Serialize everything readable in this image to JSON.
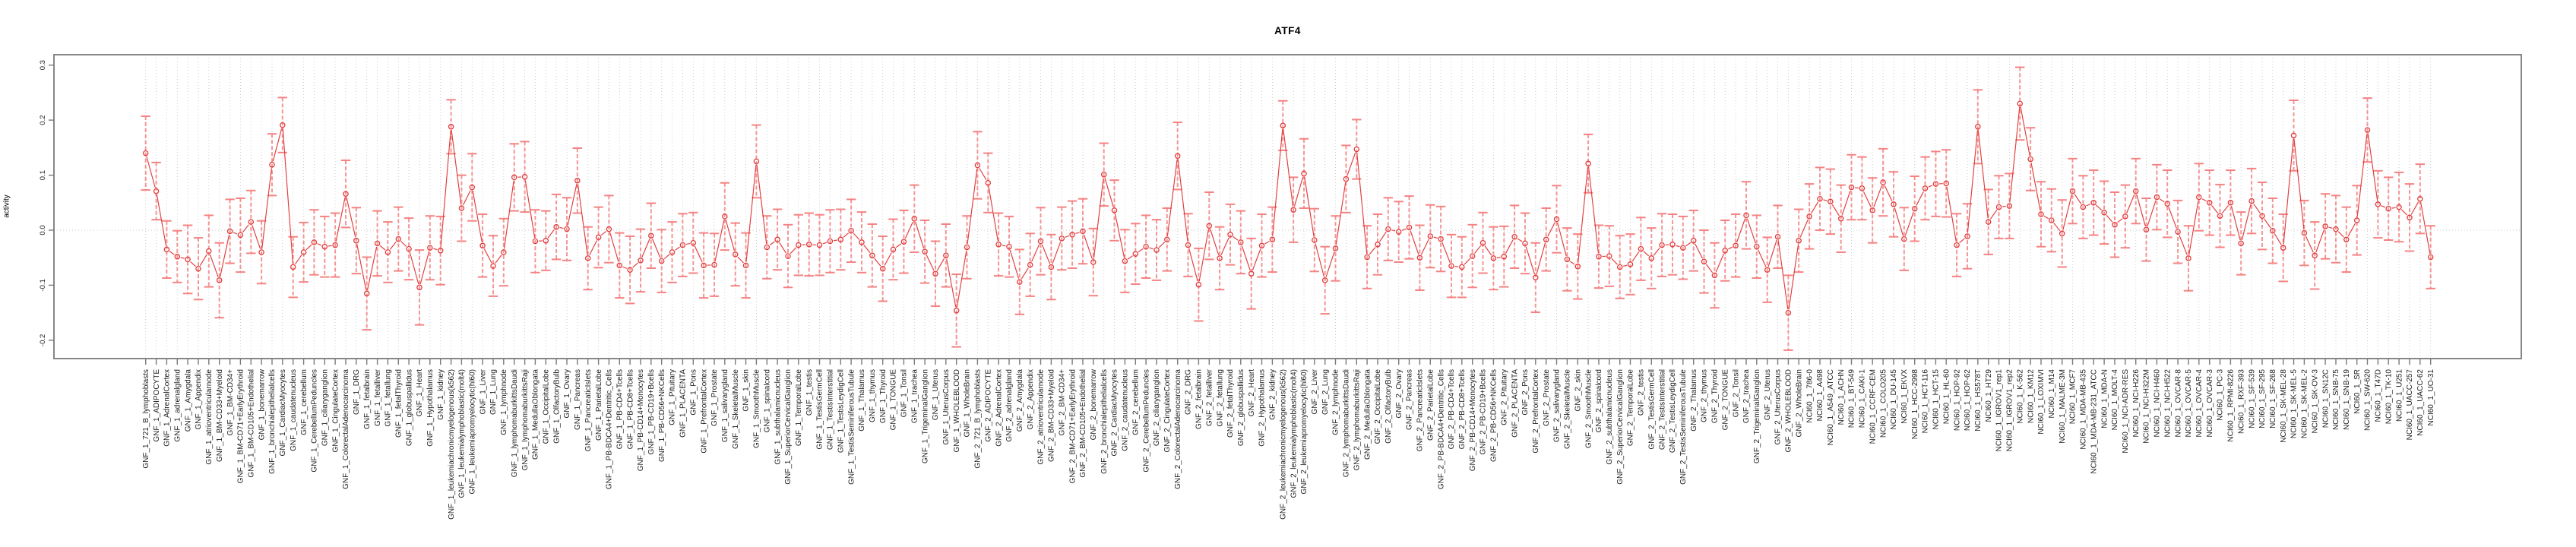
{
  "title": "ATF4",
  "chart_data": {
    "type": "line",
    "title": "ATF4",
    "ylabel": "activity",
    "xlabel": "",
    "ylim": [
      -0.23,
      0.32
    ],
    "yticks": [
      0.3,
      0.2,
      0.1,
      0.0,
      -0.1,
      -0.2
    ],
    "ytick_labels": [
      "0.3",
      "0.2",
      "0.1",
      "0.0",
      "-0.1",
      "-0.2"
    ],
    "legend_position": "none",
    "grid": {
      "vertical_dotted_per_category": true,
      "horizontal_zero_line_dotted": true
    },
    "marker": "open-circle-with-error-bars",
    "colors": {
      "point": "#e23b3b",
      "line": "#e23b3b",
      "error_bar": "#f47c7c",
      "grid": "#c9c9c9",
      "axis": "#7a7a7a",
      "text": "#1c1c1c"
    },
    "points_format": [
      "label",
      "value",
      "err"
    ],
    "points": [
      [
        "GNF_1_721_B_lymphoblasts",
        0.14,
        0.067
      ],
      [
        "GNF_1_ADIPOCYTE",
        0.071,
        0.052
      ],
      [
        "GNF_1_AdrenalCortex",
        -0.035,
        0.052
      ],
      [
        "GNF_1_adrenalgland",
        -0.048,
        0.047
      ],
      [
        "GNF_1_Amygdala",
        -0.053,
        0.062
      ],
      [
        "GNF_1_Appendix",
        -0.07,
        0.056
      ],
      [
        "GNF_1_atrioventricularnode",
        -0.038,
        0.065
      ],
      [
        "GNF_1_BM-CD33+Myeloid",
        -0.091,
        0.068
      ],
      [
        "GNF_1_BM-CD34+",
        -0.002,
        0.058
      ],
      [
        "GNF_1_BM-CD71+EarlyErythroid",
        -0.009,
        0.067
      ],
      [
        "GNF_1_BM-CD105+Endothelial",
        0.015,
        0.057
      ],
      [
        "GNF_1_bonemarrow",
        -0.04,
        0.057
      ],
      [
        "GNF_1_bronchialepithelialcells",
        0.119,
        0.056
      ],
      [
        "GNF_1_CardiacMyocytes",
        0.191,
        0.05
      ],
      [
        "GNF_1_caudatenucleus",
        -0.067,
        0.055
      ],
      [
        "GNF_1_cerebellum",
        -0.04,
        0.054
      ],
      [
        "GNF_1_CerebellumPeduncles",
        -0.022,
        0.059
      ],
      [
        "GNF_1_ciliaryganglion",
        -0.03,
        0.055
      ],
      [
        "GNF_1_CingulateCortex",
        -0.027,
        0.058
      ],
      [
        "GNF_1_ColorectalAdenocarcinoma",
        0.066,
        0.061
      ],
      [
        "GNF_1_DRG",
        -0.019,
        0.06
      ],
      [
        "GNF_1_fetalbrain",
        -0.115,
        0.066
      ],
      [
        "GNF_1_fetalliver",
        -0.024,
        0.059
      ],
      [
        "GNF_1_fetallung",
        -0.04,
        0.055
      ],
      [
        "GNF_1_fetalThyroid",
        -0.016,
        0.058
      ],
      [
        "GNF_1_globuspallidus",
        -0.034,
        0.056
      ],
      [
        "GNF_1_Heart",
        -0.104,
        0.068
      ],
      [
        "GNF_1_Hypothalamus",
        -0.032,
        0.058
      ],
      [
        "GNF_1_kidney",
        -0.037,
        0.062
      ],
      [
        "GNF_1_leukemiachronicmyelogenous(k562)",
        0.188,
        0.049
      ],
      [
        "GNF_1_leukemialymphoblastic(molt4)",
        0.04,
        0.06
      ],
      [
        "GNF_1_leukemiapromyelocytic(hl60)",
        0.078,
        0.061
      ],
      [
        "GNF_1_Liver",
        -0.028,
        0.057
      ],
      [
        "GNF_1_Lung",
        -0.065,
        0.055
      ],
      [
        "GNF_1_lymphnode",
        -0.04,
        0.061
      ],
      [
        "GNF_1_lymphomaburkittsDaudi",
        0.096,
        0.061
      ],
      [
        "GNF_1_lymphomaburkittsRaji",
        0.097,
        0.064
      ],
      [
        "GNF_1_MedullaOblongata",
        -0.02,
        0.057
      ],
      [
        "GNF_1_OccipitalLobe",
        -0.019,
        0.054
      ],
      [
        "GNF_1_OlfactoryBulb",
        0.006,
        0.059
      ],
      [
        "GNF_1_Ovary",
        0.002,
        0.057
      ],
      [
        "GNF_1_Pancreas",
        0.09,
        0.059
      ],
      [
        "GNF_1_PancreaticIslets",
        -0.051,
        0.057
      ],
      [
        "GNF_1_ParietalLobe",
        -0.013,
        0.055
      ],
      [
        "GNF_1_PB-BDCA4+Dentritic_Cells",
        0.002,
        0.061
      ],
      [
        "GNF_1_PB-CD4+Tcells",
        -0.064,
        0.059
      ],
      [
        "GNF_1_PB-CD8+Tcells",
        -0.072,
        0.061
      ],
      [
        "GNF_1_PB-CD14+Monocytes",
        -0.055,
        0.057
      ],
      [
        "GNF_1_PB-CD19+Bcells",
        -0.01,
        0.059
      ],
      [
        "GNF_1_PB-CD56+NKCells",
        -0.056,
        0.057
      ],
      [
        "GNF_1_Pituitary",
        -0.04,
        0.055
      ],
      [
        "GNF_1_PLACENTA",
        -0.027,
        0.057
      ],
      [
        "GNF_1_Pons",
        -0.023,
        0.055
      ],
      [
        "GNF_1_PrefrontalCortex",
        -0.064,
        0.059
      ],
      [
        "GNF_1_Prostate",
        -0.063,
        0.057
      ],
      [
        "GNF_1_salivarygland",
        0.025,
        0.061
      ],
      [
        "GNF_1_SkeletalMuscle",
        -0.044,
        0.057
      ],
      [
        "GNF_1_skin",
        -0.064,
        0.059
      ],
      [
        "GNF_1_SmoothMuscle",
        0.125,
        0.066
      ],
      [
        "GNF_1_spinalcord",
        -0.031,
        0.057
      ],
      [
        "GNF_1_subthalamicnucleus",
        -0.017,
        0.055
      ],
      [
        "GNF_1_SuperiorCervicalGanglion",
        -0.047,
        0.057
      ],
      [
        "GNF_1_TemporalLobe",
        -0.027,
        0.055
      ],
      [
        "GNF_1_testis",
        -0.026,
        0.057
      ],
      [
        "GNF_1_TestisGermCell",
        -0.027,
        0.055
      ],
      [
        "GNF_1_TestisInterstitial",
        -0.02,
        0.057
      ],
      [
        "GNF_1_TestisLeydigCell",
        -0.017,
        0.055
      ],
      [
        "GNF_1_TestisSeminiferousTubule",
        -0.001,
        0.057
      ],
      [
        "GNF_1_Thalamus",
        -0.022,
        0.055
      ],
      [
        "GNF_1_thymus",
        -0.046,
        0.057
      ],
      [
        "GNF_1_Thyroid",
        -0.07,
        0.059
      ],
      [
        "GNF_1_TONGUE",
        -0.035,
        0.055
      ],
      [
        "GNF_1_Tonsil",
        -0.021,
        0.057
      ],
      [
        "GNF_1_trachea",
        0.021,
        0.061
      ],
      [
        "GNF_1_TrigeminalGanglion",
        -0.039,
        0.057
      ],
      [
        "GNF_1_Uterus",
        -0.079,
        0.059
      ],
      [
        "GNF_1_UterusCorpus",
        -0.046,
        0.057
      ],
      [
        "GNF_1_WHOLEBLOOD",
        -0.146,
        0.066
      ],
      [
        "GNF_1_WholeBrain",
        -0.031,
        0.057
      ],
      [
        "GNF_2_721_B_lymphoblasts",
        0.118,
        0.061
      ],
      [
        "GNF_2_ADIPOCYTE",
        0.086,
        0.054
      ],
      [
        "GNF_2_AdrenalCortex",
        -0.026,
        0.057
      ],
      [
        "GNF_2_adrenalgland",
        -0.03,
        0.055
      ],
      [
        "GNF_2_Amygdala",
        -0.094,
        0.059
      ],
      [
        "GNF_2_Appendix",
        -0.063,
        0.057
      ],
      [
        "GNF_2_atrioventricularnode",
        -0.02,
        0.061
      ],
      [
        "GNF_2_BM-CD33+Myeloid",
        -0.067,
        0.059
      ],
      [
        "GNF_2_BM-CD34+",
        -0.015,
        0.057
      ],
      [
        "GNF_2_BM-CD71+EarlyErythroid",
        -0.008,
        0.061
      ],
      [
        "GNF_2_BM-CD105+Endothelial",
        -0.002,
        0.059
      ],
      [
        "GNF_2_bonemarrow",
        -0.058,
        0.061
      ],
      [
        "GNF_2_bronchialepithelialcells",
        0.101,
        0.057
      ],
      [
        "GNF_2_CardiacMyocytes",
        0.036,
        0.055
      ],
      [
        "GNF_2_caudatenucleus",
        -0.056,
        0.057
      ],
      [
        "GNF_2_cerebellum",
        -0.043,
        0.055
      ],
      [
        "GNF_2_CerebellumPeduncles",
        -0.03,
        0.057
      ],
      [
        "GNF_2_ciliaryganglion",
        -0.036,
        0.055
      ],
      [
        "GNF_2_CingulateCortex",
        -0.017,
        0.057
      ],
      [
        "GNF_2_ColorectalAdenocarcinoma",
        0.135,
        0.061
      ],
      [
        "GNF_2_DRG",
        -0.027,
        0.057
      ],
      [
        "GNF_2_fetalbrain",
        -0.099,
        0.066
      ],
      [
        "GNF_2_fetalliver",
        0.008,
        0.061
      ],
      [
        "GNF_2_fetallung",
        -0.051,
        0.057
      ],
      [
        "GNF_2_fetalThyroid",
        -0.008,
        0.055
      ],
      [
        "GNF_2_globuspallidus",
        -0.022,
        0.057
      ],
      [
        "GNF_2_Heart",
        -0.079,
        0.064
      ],
      [
        "GNF_2_Hypothalamus",
        -0.028,
        0.057
      ],
      [
        "GNF_2_kidney",
        -0.017,
        0.059
      ],
      [
        "GNF_2_leukemiachronicmyelogenous(k562)",
        0.19,
        0.045
      ],
      [
        "GNF_2_leukemialymphoblastic(molt4)",
        0.037,
        0.059
      ],
      [
        "GNF_2_leukemiapromyelocytic(hl60)",
        0.103,
        0.063
      ],
      [
        "GNF_2_Liver",
        -0.018,
        0.057
      ],
      [
        "GNF_2_Lung",
        -0.091,
        0.061
      ],
      [
        "GNF_2_lymphnode",
        -0.033,
        0.059
      ],
      [
        "GNF_2_lymphomaburkittsDaudi",
        0.093,
        0.061
      ],
      [
        "GNF_2_lymphomaburkittsRaji",
        0.147,
        0.054
      ],
      [
        "GNF_2_MedullaOblongata",
        -0.049,
        0.057
      ],
      [
        "GNF_2_OccipitalLobe",
        -0.026,
        0.055
      ],
      [
        "GNF_2_OlfactoryBulb",
        0.002,
        0.057
      ],
      [
        "GNF_2_Ovary",
        -0.003,
        0.055
      ],
      [
        "GNF_2_Pancreas",
        0.005,
        0.057
      ],
      [
        "GNF_2_PancreaticIslets",
        -0.05,
        0.059
      ],
      [
        "GNF_2_ParietalLobe",
        -0.011,
        0.057
      ],
      [
        "GNF_2_PB-BDCA4+Dentritic_Cells",
        -0.016,
        0.059
      ],
      [
        "GNF_2_PB-CD4+Tcells",
        -0.065,
        0.057
      ],
      [
        "GNF_2_PB-CD8+Tcells",
        -0.067,
        0.055
      ],
      [
        "GNF_2_PB-CD14+Monocytes",
        -0.047,
        0.057
      ],
      [
        "GNF_2_PB-CD19+Bcells",
        -0.023,
        0.055
      ],
      [
        "GNF_2_PB-CD56+NKCells",
        -0.051,
        0.057
      ],
      [
        "GNF_2_Pituitary",
        -0.048,
        0.055
      ],
      [
        "GNF_2_PLACENTA",
        -0.012,
        0.057
      ],
      [
        "GNF_2_Pons",
        -0.024,
        0.055
      ],
      [
        "GNF_2_PrefrontalCortex",
        -0.086,
        0.063
      ],
      [
        "GNF_2_Prostate",
        -0.017,
        0.057
      ],
      [
        "GNF_2_salivarygland",
        0.02,
        0.061
      ],
      [
        "GNF_2_SkeletalMuscle",
        -0.053,
        0.057
      ],
      [
        "GNF_2_skin",
        -0.066,
        0.059
      ],
      [
        "GNF_2_SmoothMuscle",
        0.121,
        0.053
      ],
      [
        "GNF_2_spinalcord",
        -0.048,
        0.057
      ],
      [
        "GNF_2_subthalamicnucleus",
        -0.047,
        0.055
      ],
      [
        "GNF_2_SuperiorCervicalGanglion",
        -0.067,
        0.057
      ],
      [
        "GNF_2_TemporalLobe",
        -0.062,
        0.055
      ],
      [
        "GNF_2_testis",
        -0.034,
        0.057
      ],
      [
        "GNF_2_TestisGermCell",
        -0.051,
        0.055
      ],
      [
        "GNF_2_TestisInterstitial",
        -0.027,
        0.057
      ],
      [
        "GNF_2_TestisLeydigCell",
        -0.026,
        0.055
      ],
      [
        "GNF_2_TestisSeminiferousTubule",
        -0.032,
        0.057
      ],
      [
        "GNF_2_Thalamus",
        -0.019,
        0.055
      ],
      [
        "GNF_2_thymus",
        -0.057,
        0.057
      ],
      [
        "GNF_2_Thyroid",
        -0.082,
        0.059
      ],
      [
        "GNF_2_TONGUE",
        -0.037,
        0.055
      ],
      [
        "GNF_2_Tonsil",
        -0.028,
        0.057
      ],
      [
        "GNF_2_trachea",
        0.027,
        0.061
      ],
      [
        "GNF_2_TrigeminalGanglion",
        -0.03,
        0.057
      ],
      [
        "GNF_2_Uterus",
        -0.072,
        0.059
      ],
      [
        "GNF_2_UterusCorpus",
        -0.012,
        0.057
      ],
      [
        "GNF_2_WHOLEBLOOD",
        -0.15,
        0.068
      ],
      [
        "GNF_2_WholeBrain",
        -0.019,
        0.057
      ],
      [
        "NCI60_1_786-0",
        0.025,
        0.059
      ],
      [
        "NCI60_1_A498",
        0.057,
        0.057
      ],
      [
        "NCI60_1_A549_ATCC",
        0.052,
        0.059
      ],
      [
        "NCI60_1_ACHN",
        0.021,
        0.061
      ],
      [
        "NCI60_1_BT-549",
        0.078,
        0.059
      ],
      [
        "NCI60_1_CAKI-1",
        0.076,
        0.057
      ],
      [
        "NCI60_1_CCRF-CEM",
        0.036,
        0.059
      ],
      [
        "NCI60_1_COLO205",
        0.087,
        0.061
      ],
      [
        "NCI60_1_DU-145",
        0.047,
        0.059
      ],
      [
        "NCI60_1_EKVX",
        -0.016,
        0.057
      ],
      [
        "NCI60_1_HCC-2998",
        0.039,
        0.059
      ],
      [
        "NCI60_1_HCT-116",
        0.076,
        0.057
      ],
      [
        "NCI60_1_HCT-15",
        0.084,
        0.059
      ],
      [
        "NCI60_1_HL-60",
        0.085,
        0.061
      ],
      [
        "NCI60_1_HOP-92",
        -0.027,
        0.057
      ],
      [
        "NCI60_1_HOP-62",
        -0.011,
        0.059
      ],
      [
        "NCI60_1_HS578T",
        0.188,
        0.067
      ],
      [
        "NCI60_1_HT29",
        0.015,
        0.059
      ],
      [
        "NCI60_1_IGROV1_rep1",
        0.042,
        0.057
      ],
      [
        "NCI60_1_IGROV1_rep2",
        0.044,
        0.059
      ],
      [
        "NCI60_1_K-562",
        0.23,
        0.066
      ],
      [
        "NCI60_1_KM12",
        0.129,
        0.057
      ],
      [
        "NCI60_1_LOXIMVI",
        0.029,
        0.059
      ],
      [
        "NCI60_1_M14",
        0.018,
        0.057
      ],
      [
        "NCI60_1_MALME-3M",
        -0.006,
        0.061
      ],
      [
        "NCI60_1_MCF7",
        0.071,
        0.059
      ],
      [
        "NCI60_1_MDA-MB-435",
        0.042,
        0.057
      ],
      [
        "NCI60_1_MDA-MB-231_ATCC",
        0.05,
        0.059
      ],
      [
        "NCI60_1_MDA-N",
        0.032,
        0.057
      ],
      [
        "NCI60_1_MOLT-4",
        0.01,
        0.059
      ],
      [
        "NCI60_1_NCI-ADR-RES",
        0.025,
        0.057
      ],
      [
        "NCI60_1_NCI-H226",
        0.071,
        0.059
      ],
      [
        "NCI60_1_NCI-H322M",
        0.001,
        0.057
      ],
      [
        "NCI60_1_NCI-H460",
        0.06,
        0.059
      ],
      [
        "NCI60_1_NCI-H522",
        0.048,
        0.061
      ],
      [
        "NCI60_1_OVCAR-8",
        -0.003,
        0.057
      ],
      [
        "NCI60_1_OVCAR-5",
        -0.051,
        0.059
      ],
      [
        "NCI60_1_OVCAR-4",
        0.06,
        0.061
      ],
      [
        "NCI60_1_OVCAR-3",
        0.05,
        0.059
      ],
      [
        "NCI60_1_PC-3",
        0.026,
        0.057
      ],
      [
        "NCI60_1_RPMI-8226",
        0.05,
        0.059
      ],
      [
        "NCI60_1_RXF-393",
        -0.024,
        0.057
      ],
      [
        "NCI60_1_SF-539",
        0.053,
        0.059
      ],
      [
        "NCI60_1_SF-295",
        0.026,
        0.061
      ],
      [
        "NCI60_1_SF-268",
        -0.001,
        0.059
      ],
      [
        "NCI60_1_SK-MEL-28",
        -0.032,
        0.061
      ],
      [
        "NCI60_1_SK-MEL-5",
        0.172,
        0.064
      ],
      [
        "NCI60_1_SK-MEL-2",
        -0.005,
        0.059
      ],
      [
        "NCI60_1_SK-OV-3",
        -0.046,
        0.061
      ],
      [
        "NCI60_1_SN12C",
        0.007,
        0.059
      ],
      [
        "NCI60_1_SNB-75",
        0.002,
        0.061
      ],
      [
        "NCI60_1_SNB-19",
        -0.017,
        0.059
      ],
      [
        "NCI60_1_SR",
        0.018,
        0.063
      ],
      [
        "NCI60_1_SW-620",
        0.182,
        0.058
      ],
      [
        "NCI60_1_T47D",
        0.047,
        0.061
      ],
      [
        "NCI60_1_TK-10",
        0.039,
        0.057
      ],
      [
        "NCI60_1_U251",
        0.042,
        0.063
      ],
      [
        "NCI60_1_UACC-257",
        0.023,
        0.061
      ],
      [
        "NCI60_1_UACC-62",
        0.057,
        0.063
      ],
      [
        "NCI60_1_UO-31",
        -0.049,
        0.057
      ]
    ]
  }
}
